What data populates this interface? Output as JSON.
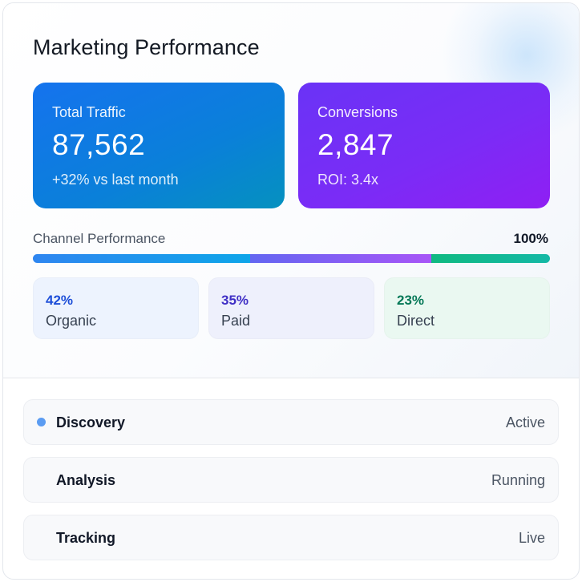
{
  "page_title": "Marketing Performance",
  "stats": [
    {
      "label": "Total Traffic",
      "value": "87,562",
      "sub": "+32% vs last month"
    },
    {
      "label": "Conversions",
      "value": "2,847",
      "sub": "ROI: 3.4x"
    }
  ],
  "channel": {
    "label": "Channel Performance",
    "total": "100%",
    "segments": [
      {
        "name": "Organic",
        "pct_text": "42%",
        "value": 0.42,
        "color": "#2f86f0"
      },
      {
        "name": "Paid",
        "pct_text": "35%",
        "value": 0.35,
        "color": "#8b5cf6"
      },
      {
        "name": "Direct",
        "pct_text": "23%",
        "value": 0.23,
        "color": "#10b981"
      }
    ]
  },
  "steps": [
    {
      "name": "Discovery",
      "status": "Active",
      "indicator": true,
      "indicator_color": "#5b9cf2"
    },
    {
      "name": "Analysis",
      "status": "Running",
      "indicator": false
    },
    {
      "name": "Tracking",
      "status": "Live",
      "indicator": false
    }
  ],
  "colors": {
    "traffic_card": "#1573ee",
    "conversions_card": "#7a2cf6",
    "organic": "#1d4ed8",
    "paid": "#3f2fc5",
    "direct": "#047857"
  }
}
